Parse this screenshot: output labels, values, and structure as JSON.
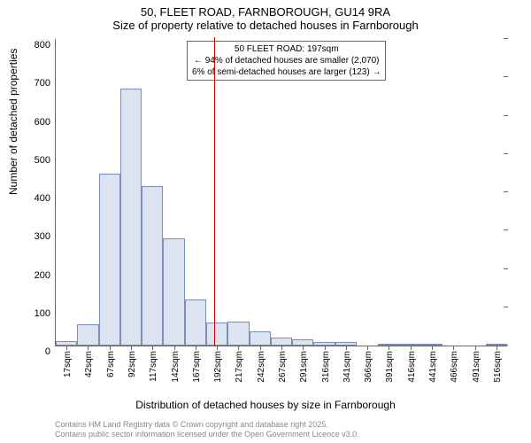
{
  "chart": {
    "type": "histogram",
    "title_main": "50, FLEET ROAD, FARNBOROUGH, GU14 9RA",
    "title_sub": "Size of property relative to detached houses in Farnborough",
    "y_label": "Number of detached properties",
    "x_label": "Distribution of detached houses by size in Farnborough",
    "ylim": [
      0,
      800
    ],
    "y_ticks": [
      0,
      100,
      200,
      300,
      400,
      500,
      600,
      700,
      800
    ],
    "x_categories": [
      "17sqm",
      "42sqm",
      "67sqm",
      "92sqm",
      "117sqm",
      "142sqm",
      "167sqm",
      "192sqm",
      "217sqm",
      "242sqm",
      "267sqm",
      "291sqm",
      "316sqm",
      "341sqm",
      "366sqm",
      "391sqm",
      "416sqm",
      "441sqm",
      "466sqm",
      "491sqm",
      "516sqm"
    ],
    "values": [
      12,
      56,
      448,
      670,
      416,
      280,
      120,
      60,
      62,
      36,
      22,
      16,
      10,
      10,
      0,
      2,
      2,
      2,
      0,
      0,
      1
    ],
    "bar_fill": "#dbe4f0",
    "bar_stroke": "#7a8db8",
    "reference_line": {
      "x_value": 197,
      "x_min": 17,
      "x_max": 528.5,
      "color": "#cc0000"
    },
    "annotation": {
      "line1": "50 FLEET ROAD: 197sqm",
      "line2": "← 94% of detached houses are smaller (2,070)",
      "line3": "6% of semi-detached houses are larger (123) →"
    },
    "footer_line1": "Contains HM Land Registry data © Crown copyright and database right 2025.",
    "footer_line2": "Contains public sector information licensed under the Open Government Licence v3.0."
  }
}
